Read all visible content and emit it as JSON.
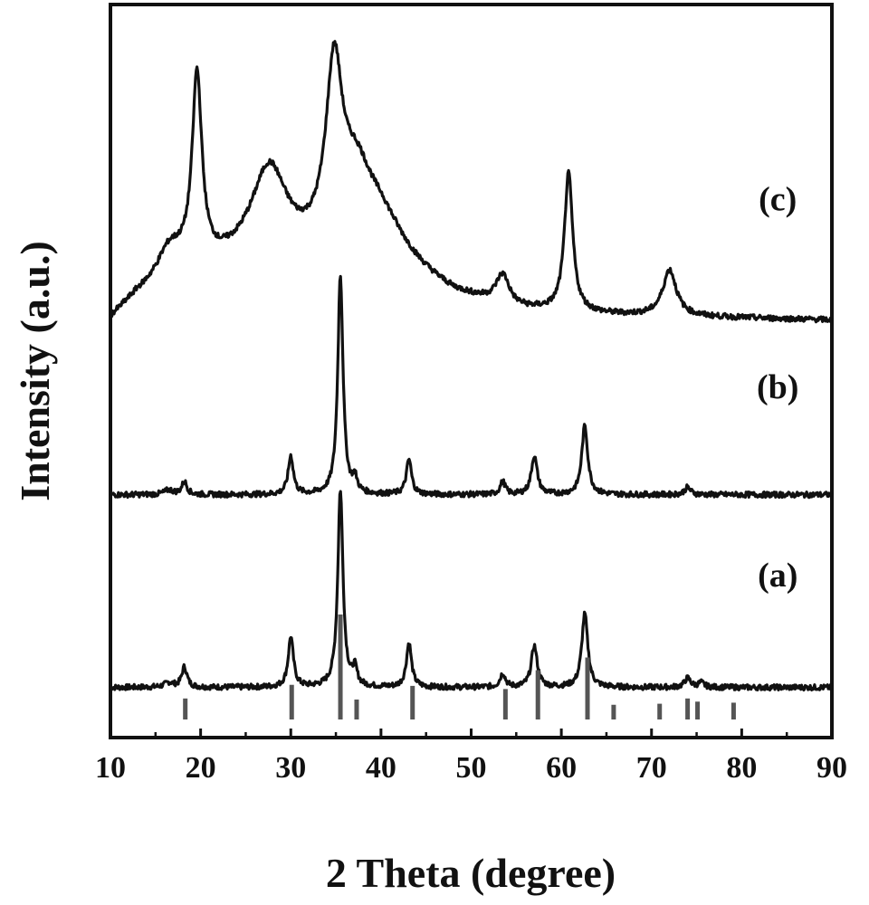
{
  "chart_data": {
    "type": "line",
    "title": "",
    "xlabel": "2 Theta (degree)",
    "ylabel": "Intensity (a.u.)",
    "xlim": [
      10,
      90
    ],
    "xticks": [
      "10",
      "20",
      "30",
      "40",
      "50",
      "60",
      "70",
      "80",
      "90"
    ],
    "y_ticks_shown": false,
    "grid": false,
    "legend": "none",
    "line_color": "#111111",
    "reference_color": "#555555",
    "series": [
      {
        "name": "(a)",
        "baseline": 0.3,
        "peaks": [
          [
            16.5,
            0.05,
            0.6
          ],
          [
            18.2,
            0.22,
            0.35
          ],
          [
            30.0,
            0.55,
            0.35
          ],
          [
            35.5,
            2.15,
            0.35
          ],
          [
            37.1,
            0.18,
            0.3
          ],
          [
            43.1,
            0.48,
            0.35
          ],
          [
            53.5,
            0.15,
            0.35
          ],
          [
            57.0,
            0.45,
            0.4
          ],
          [
            62.6,
            0.8,
            0.4
          ],
          [
            74.0,
            0.1,
            0.4
          ],
          [
            75.5,
            0.05,
            0.4
          ]
        ]
      },
      {
        "name": "(b)",
        "baseline": 2.4,
        "peaks": [
          [
            16.5,
            0.05,
            0.6
          ],
          [
            18.2,
            0.14,
            0.35
          ],
          [
            30.0,
            0.42,
            0.35
          ],
          [
            35.5,
            2.4,
            0.35
          ],
          [
            37.1,
            0.15,
            0.3
          ],
          [
            43.1,
            0.38,
            0.35
          ],
          [
            53.5,
            0.14,
            0.35
          ],
          [
            57.0,
            0.42,
            0.4
          ],
          [
            62.6,
            0.75,
            0.4
          ],
          [
            74.0,
            0.08,
            0.4
          ]
        ]
      },
      {
        "name": "(c)",
        "baseline": 4.3,
        "peaks": [
          [
            16.5,
            0.3,
            1.6
          ],
          [
            19.6,
            2.05,
            0.65
          ],
          [
            27.6,
            1.0,
            2.4
          ],
          [
            34.8,
            1.85,
            1.1
          ],
          [
            37.2,
            0.75,
            2.2
          ],
          [
            40.0,
            0.4,
            3.5
          ],
          [
            53.5,
            0.32,
            0.9
          ],
          [
            60.8,
            1.5,
            0.55
          ],
          [
            72.0,
            0.5,
            0.9
          ]
        ],
        "background": [
          [
            10.0,
            0.0
          ],
          [
            13.0,
            0.25
          ],
          [
            18.0,
            0.5
          ],
          [
            25.0,
            0.6
          ],
          [
            32.0,
            0.6
          ],
          [
            40.0,
            0.6
          ],
          [
            48.0,
            0.25
          ],
          [
            55.0,
            0.1
          ],
          [
            65.0,
            0.05
          ],
          [
            90.0,
            0.0
          ]
        ]
      }
    ],
    "reference_pattern": {
      "positions": [
        18.3,
        30.1,
        35.5,
        37.3,
        43.5,
        53.8,
        57.4,
        62.9,
        65.8,
        70.9,
        74.0,
        75.1,
        79.1
      ],
      "intensities": [
        0.2,
        0.33,
        1.0,
        0.19,
        0.32,
        0.29,
        0.47,
        0.59,
        0.14,
        0.15,
        0.2,
        0.17,
        0.16
      ]
    },
    "series_labels": [
      {
        "text": "(a)",
        "x": 84,
        "y": 1.4
      },
      {
        "text": "(b)",
        "x": 84,
        "y": 3.45
      },
      {
        "text": "(c)",
        "x": 84,
        "y": 5.5
      }
    ]
  }
}
